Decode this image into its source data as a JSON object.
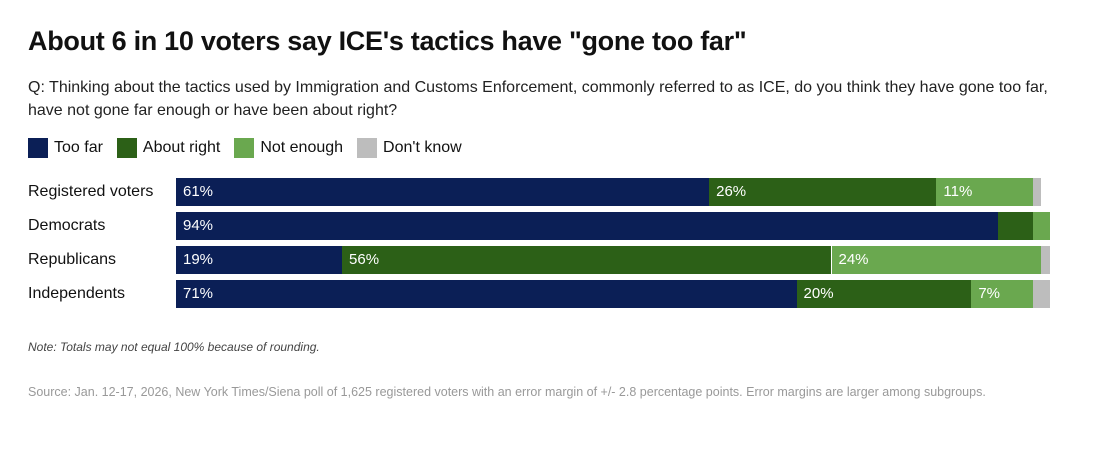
{
  "chart_data": {
    "type": "bar",
    "orientation": "horizontal",
    "stacked": true,
    "title": "About 6 in 10 voters say ICE's tactics have \"gone too far\"",
    "subtitle": "Q: Thinking about the tactics used by Immigration and Customs Enforcement, commonly referred to as ICE, do you think they have gone too far, have not gone far enough or have been about right?",
    "categories": [
      "Registered voters",
      "Democrats",
      "Republicans",
      "Independents"
    ],
    "series": [
      {
        "name": "Too far",
        "color": "#0b1f56",
        "values": [
          61,
          94,
          19,
          71
        ],
        "labels": [
          "61%",
          "94%",
          "19%",
          "71%"
        ]
      },
      {
        "name": "About right",
        "color": "#2c6017",
        "values": [
          26,
          4,
          56,
          20
        ],
        "labels": [
          "26%",
          "",
          "56%",
          "20%"
        ]
      },
      {
        "name": "Not enough",
        "color": "#6aa84f",
        "values": [
          11,
          2,
          24,
          7
        ],
        "labels": [
          "11%",
          "",
          "24%",
          "7%"
        ]
      },
      {
        "name": "Don't know",
        "color": "#bdbdbd",
        "values": [
          1,
          0,
          1,
          2
        ],
        "labels": [
          "",
          "",
          "",
          ""
        ]
      }
    ],
    "xlim": [
      0,
      100
    ],
    "legend": "top-left",
    "grid": false,
    "note": "Note: Totals may not equal 100% because of rounding.",
    "source": "Source: Jan. 12-17, 2026, New York Times/Siena poll of 1,625 registered voters with an error margin of +/- 2.8 percentage points. Error margins are larger among subgroups."
  }
}
